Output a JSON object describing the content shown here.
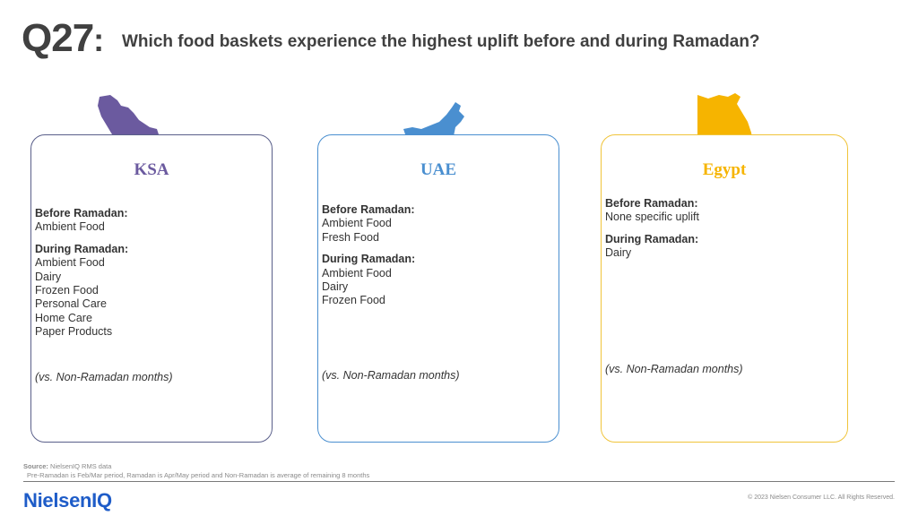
{
  "header": {
    "question_number": "Q27",
    "colon": ":",
    "question": "Which food baskets experience the highest uplift before and during Ramadan?"
  },
  "colors": {
    "ksa": "#6b5a9f",
    "uae": "#4a8fd0",
    "egypt": "#f6b400"
  },
  "cards": [
    {
      "country": "KSA",
      "map_icon": "saudi-arabia-map",
      "before_label": "Before Ramadan:",
      "before_items": [
        "Ambient Food"
      ],
      "during_label": "During Ramadan:",
      "during_items": [
        "Ambient Food",
        "Dairy",
        "Frozen Food",
        "Personal Care",
        "Home Care",
        "Paper Products"
      ],
      "note": "(vs. Non-Ramadan months)"
    },
    {
      "country": "UAE",
      "map_icon": "uae-map",
      "before_label": "Before Ramadan:",
      "before_items": [
        "Ambient Food",
        "Fresh Food"
      ],
      "during_label": "During Ramadan:",
      "during_items": [
        "Ambient Food",
        "Dairy",
        "Frozen Food"
      ],
      "note": "(vs. Non-Ramadan months)"
    },
    {
      "country": "Egypt",
      "map_icon": "egypt-map",
      "before_label": "Before Ramadan:",
      "before_items": [
        "None specific uplift"
      ],
      "during_label": "During Ramadan:",
      "during_items": [
        "Dairy"
      ],
      "note": "(vs. Non-Ramadan months)"
    }
  ],
  "footer": {
    "source_label": "Source:",
    "source_text": " NielsenIQ RMS data",
    "footnote": "Pre-Ramadan is Feb/Mar period, Ramadan is Apr/May period and Non-Ramadan is average of remaining 8 months",
    "logo": "NielsenIQ",
    "copyright": "© 2023 Nielsen Consumer LLC. All Rights Reserved."
  }
}
